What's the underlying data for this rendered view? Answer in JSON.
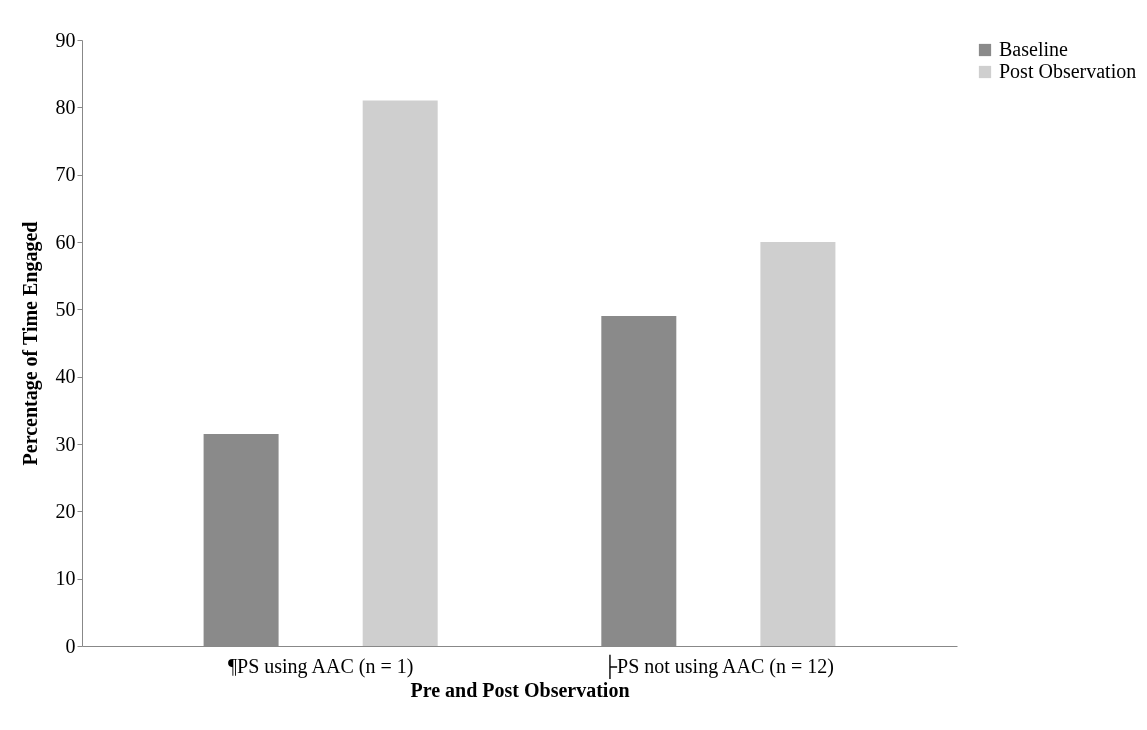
{
  "chart_data": {
    "type": "bar",
    "xlabel": "Pre and Post Observation",
    "ylabel": "Percentage of Time Engaged",
    "categories": [
      "¶PS using AAC (n = 1)",
      "├PS not using AAC (n = 12)"
    ],
    "series": [
      {
        "name": "Baseline",
        "color": "#8a8a8a",
        "values": [
          31.5,
          49
        ]
      },
      {
        "name": "Post Observation",
        "color": "#cfcfcf",
        "values": [
          81,
          60
        ]
      }
    ],
    "ylim": [
      0,
      90
    ],
    "yticks": [
      0,
      10,
      20,
      30,
      40,
      50,
      60,
      70,
      80,
      90
    ],
    "grid": false,
    "legend": "right"
  }
}
